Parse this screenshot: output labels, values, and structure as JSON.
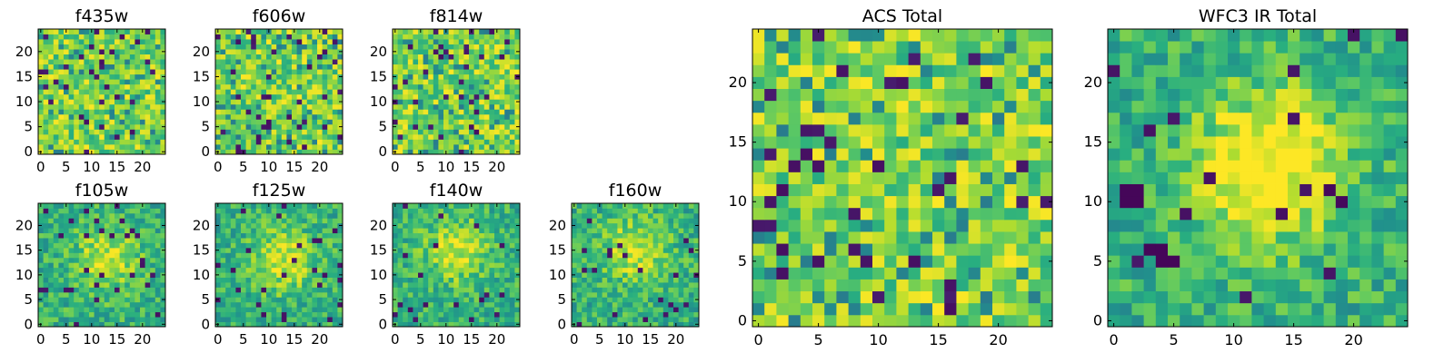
{
  "chart_data": [
    {
      "type": "heatmap",
      "title": "f435w",
      "grid_size": 25,
      "xticks": [
        0,
        5,
        10,
        15,
        20
      ],
      "yticks": [
        0,
        5,
        10,
        15,
        20
      ],
      "xlim": [
        0,
        24
      ],
      "ylim": [
        0,
        24
      ],
      "colormap": "viridis",
      "pattern": "noise",
      "seed": 11
    },
    {
      "type": "heatmap",
      "title": "f606w",
      "grid_size": 25,
      "xticks": [
        0,
        5,
        10,
        15,
        20
      ],
      "yticks": [
        0,
        5,
        10,
        15,
        20
      ],
      "xlim": [
        0,
        24
      ],
      "ylim": [
        0,
        24
      ],
      "colormap": "viridis",
      "pattern": "noise",
      "seed": 23
    },
    {
      "type": "heatmap",
      "title": "f814w",
      "grid_size": 25,
      "xticks": [
        0,
        5,
        10,
        15,
        20
      ],
      "yticks": [
        0,
        5,
        10,
        15,
        20
      ],
      "xlim": [
        0,
        24
      ],
      "ylim": [
        0,
        24
      ],
      "colormap": "viridis",
      "pattern": "noise",
      "seed": 37
    },
    {
      "type": "heatmap",
      "title": "f105w",
      "grid_size": 25,
      "xticks": [
        0,
        5,
        10,
        15,
        20
      ],
      "yticks": [
        0,
        5,
        10,
        15,
        20
      ],
      "xlim": [
        0,
        24
      ],
      "ylim": [
        0,
        24
      ],
      "colormap": "viridis",
      "pattern": "source",
      "seed": 41
    },
    {
      "type": "heatmap",
      "title": "f125w",
      "grid_size": 25,
      "xticks": [
        0,
        5,
        10,
        15,
        20
      ],
      "yticks": [
        0,
        5,
        10,
        15,
        20
      ],
      "xlim": [
        0,
        24
      ],
      "ylim": [
        0,
        24
      ],
      "colormap": "viridis",
      "pattern": "source",
      "seed": 53
    },
    {
      "type": "heatmap",
      "title": "f140w",
      "grid_size": 25,
      "xticks": [
        0,
        5,
        10,
        15,
        20
      ],
      "yticks": [
        0,
        5,
        10,
        15,
        20
      ],
      "xlim": [
        0,
        24
      ],
      "ylim": [
        0,
        24
      ],
      "colormap": "viridis",
      "pattern": "source",
      "seed": 67
    },
    {
      "type": "heatmap",
      "title": "f160w",
      "grid_size": 25,
      "xticks": [
        0,
        5,
        10,
        15,
        20
      ],
      "yticks": [
        0,
        5,
        10,
        15,
        20
      ],
      "xlim": [
        0,
        24
      ],
      "ylim": [
        0,
        24
      ],
      "colormap": "viridis",
      "pattern": "source",
      "seed": 79
    },
    {
      "type": "heatmap",
      "title": "ACS Total",
      "grid_size": 25,
      "xticks": [
        0,
        5,
        10,
        15,
        20
      ],
      "yticks": [
        0,
        5,
        10,
        15,
        20
      ],
      "xlim": [
        0,
        24
      ],
      "ylim": [
        0,
        24
      ],
      "colormap": "viridis",
      "pattern": "noise",
      "seed": 97
    },
    {
      "type": "heatmap",
      "title": "WFC3 IR Total",
      "grid_size": 25,
      "xticks": [
        0,
        5,
        10,
        15,
        20
      ],
      "yticks": [
        0,
        5,
        10,
        15,
        20
      ],
      "xlim": [
        0,
        24
      ],
      "ylim": [
        0,
        24
      ],
      "colormap": "viridis",
      "pattern": "source-strong",
      "seed": 113
    }
  ]
}
